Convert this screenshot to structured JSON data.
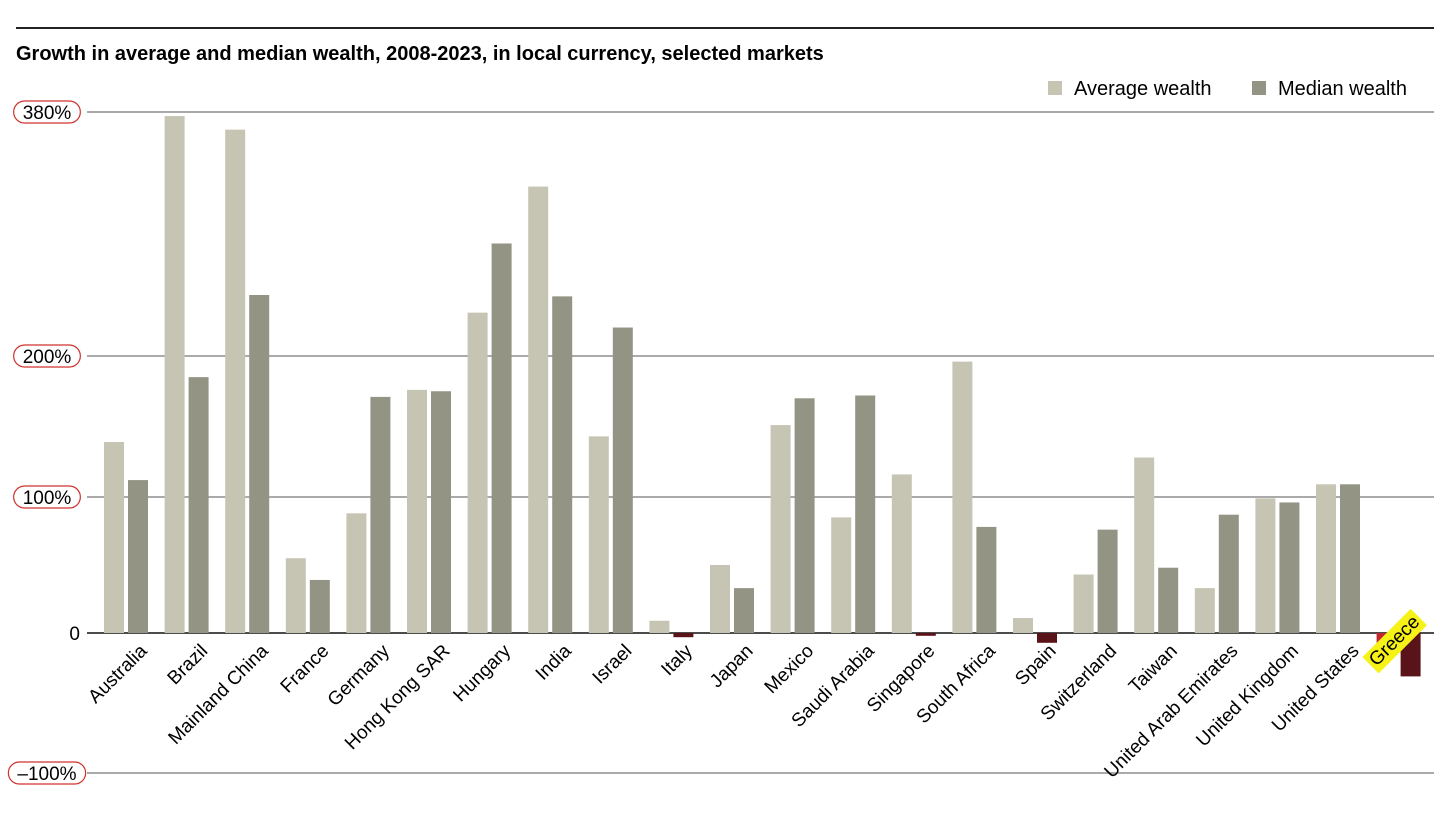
{
  "chart_data": {
    "type": "bar",
    "title": "Growth in average and median wealth, 2008-2023, in local currency, selected markets",
    "y_ticks": [
      {
        "value": 380,
        "label": "380%"
      },
      {
        "value": 200,
        "label": "200%"
      },
      {
        "value": 100,
        "label": "100%"
      },
      {
        "value": 0,
        "label": "0"
      },
      {
        "value": -100,
        "label": "–100%"
      }
    ],
    "legend": {
      "placement": "top-right"
    },
    "categories": [
      "Australia",
      "Brazil",
      "Mainland China",
      "France",
      "Germany",
      "Hong Kong SAR",
      "Hungary",
      "India",
      "Israel",
      "Italy",
      "Japan",
      "Mexico",
      "Saudi Arabia",
      "Singapore",
      "South Africa",
      "Spain",
      "Switzerland",
      "Taiwan",
      "United Arab Emirates",
      "United Kingdom",
      "United States",
      "Greece"
    ],
    "highlight_category": "Greece",
    "series": [
      {
        "name": "Average wealth",
        "color": "#c6c5b4",
        "negative_color": "#c1272d",
        "values": [
          139,
          377,
          367,
          55,
          88,
          176,
          232,
          325,
          143,
          9,
          50,
          151,
          85,
          116,
          196,
          11,
          43,
          128,
          33,
          99,
          109,
          -11
        ]
      },
      {
        "name": "Median wealth",
        "color": "#939484",
        "negative_color": "#5a1419",
        "values": [
          112,
          185,
          245,
          39,
          171,
          175,
          283,
          244,
          221,
          -3,
          33,
          170,
          172,
          -2,
          78,
          -7,
          76,
          48,
          87,
          96,
          109,
          -31
        ]
      }
    ],
    "ylim": [
      -100,
      380
    ],
    "grid": true
  }
}
